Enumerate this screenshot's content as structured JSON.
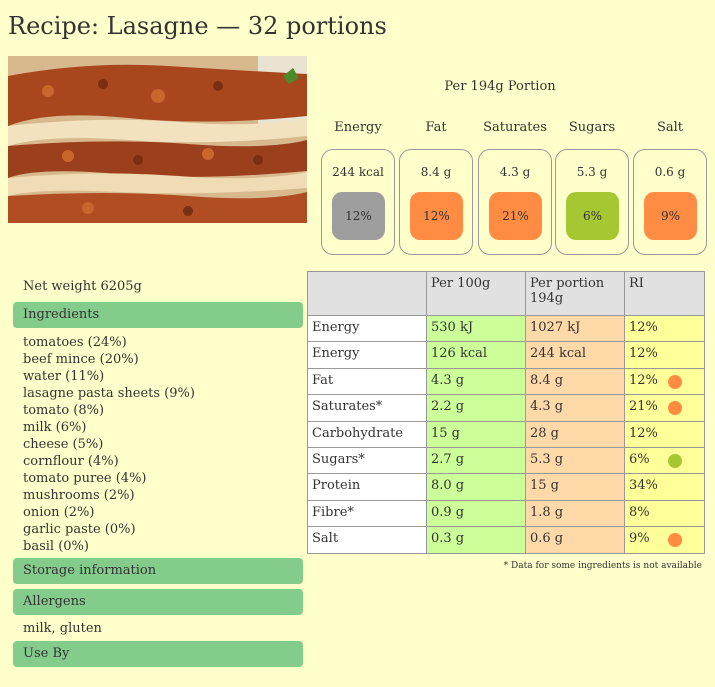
{
  "title": "Recipe: Lasagne — 32 portions",
  "portion_heading": "Per 194g Portion",
  "traffic_lights": [
    {
      "label": "Energy",
      "value": "244 kcal",
      "ri": "12%",
      "color": "#9e9e9e"
    },
    {
      "label": "Fat",
      "value": "8.4 g",
      "ri": "12%",
      "color": "#ff8c42"
    },
    {
      "label": "Saturates",
      "value": "4.3 g",
      "ri": "21%",
      "color": "#ff8c42"
    },
    {
      "label": "Sugars",
      "value": "5.3 g",
      "ri": "6%",
      "color": "#a5c832"
    },
    {
      "label": "Salt",
      "value": "0.6 g",
      "ri": "9%",
      "color": "#ff8c42"
    }
  ],
  "net_weight": "Net weight 6205g",
  "sections": {
    "ingredients": "Ingredients",
    "storage": "Storage information",
    "allergens": "Allergens",
    "use_by": "Use By"
  },
  "ingredients": [
    "tomatoes (24%)",
    "beef mince (20%)",
    "water (11%)",
    "lasagne pasta sheets (9%)",
    "tomato (8%)",
    "milk (6%)",
    "cheese (5%)",
    "cornflour (4%)",
    "tomato puree (4%)",
    "mushrooms (2%)",
    "onion (2%)",
    "garlic paste (0%)",
    "basil (0%)"
  ],
  "allergens_text": "milk, gluten",
  "table": {
    "headers": [
      "",
      "Per 100g",
      "Per portion 194g",
      "RI"
    ],
    "rows": [
      {
        "name": "Energy",
        "per100": "530 kJ",
        "portion": "1027 kJ",
        "ri": "12%",
        "dot": ""
      },
      {
        "name": "Energy",
        "per100": "126 kcal",
        "portion": "244 kcal",
        "ri": "12%",
        "dot": ""
      },
      {
        "name": "Fat",
        "per100": "4.3 g",
        "portion": "8.4 g",
        "ri": "12%",
        "dot": "#ff8c42"
      },
      {
        "name": "Saturates*",
        "per100": "2.2 g",
        "portion": "4.3 g",
        "ri": "21%",
        "dot": "#ff8c42"
      },
      {
        "name": "Carbohydrate",
        "per100": "15 g",
        "portion": "28 g",
        "ri": "12%",
        "dot": ""
      },
      {
        "name": "Sugars*",
        "per100": "2.7 g",
        "portion": "5.3 g",
        "ri": "6%",
        "dot": "#a5c832"
      },
      {
        "name": "Protein",
        "per100": "8.0 g",
        "portion": "15 g",
        "ri": "34%",
        "dot": ""
      },
      {
        "name": "Fibre*",
        "per100": "0.9 g",
        "portion": "1.8 g",
        "ri": "8%",
        "dot": ""
      },
      {
        "name": "Salt",
        "per100": "0.3 g",
        "portion": "0.6 g",
        "ri": "9%",
        "dot": "#ff8c42"
      }
    ]
  },
  "footnote": "* Data for some ingredients is not available"
}
